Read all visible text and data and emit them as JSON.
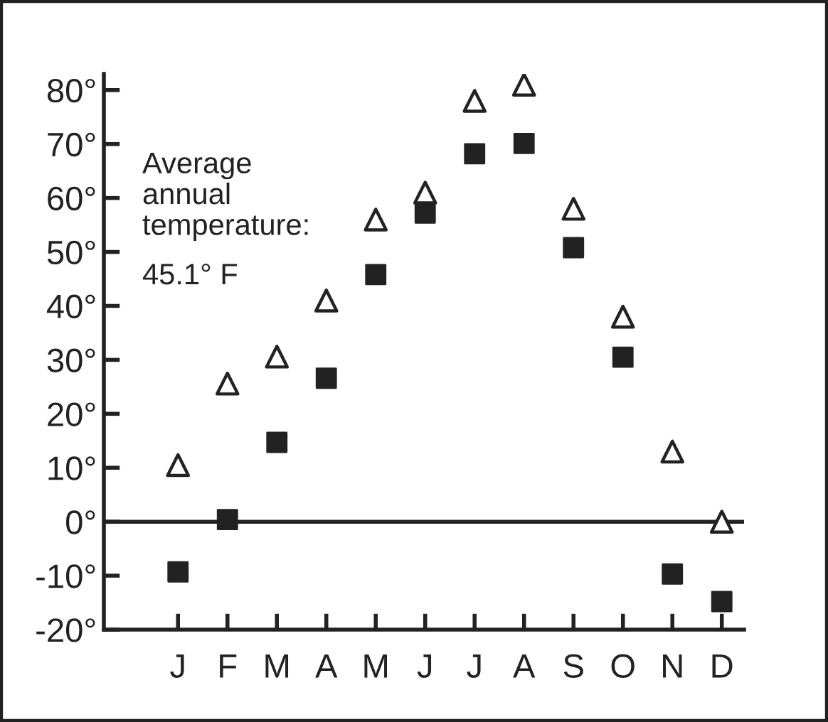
{
  "chart_data": {
    "type": "scatter",
    "categories": [
      "J",
      "F",
      "M",
      "A",
      "M",
      "J",
      "J",
      "A",
      "S",
      "O",
      "N",
      "D"
    ],
    "series": [
      {
        "color": "#222222",
        "marker": "triangle",
        "values": [
          10.5,
          25.6,
          30.6,
          41,
          56,
          61,
          78,
          81,
          58,
          38,
          13,
          0
        ]
      },
      {
        "color": "#222222",
        "marker": "square",
        "values": [
          -9.3,
          0.4,
          14.7,
          26.6,
          45.8,
          57.2,
          68.2,
          70.1,
          50.8,
          30.5,
          -9.7,
          -14.8
        ]
      }
    ],
    "ylim": [
      -20,
      83
    ],
    "yticks": [
      {
        "value": -20,
        "label": "-20°"
      },
      {
        "value": -10,
        "label": "-10°"
      },
      {
        "value": 0,
        "label": "0°"
      },
      {
        "value": 10,
        "label": "10°"
      },
      {
        "value": 20,
        "label": "20°"
      },
      {
        "value": 30,
        "label": "30°"
      },
      {
        "value": 40,
        "label": "40°"
      },
      {
        "value": 50,
        "label": "50°"
      },
      {
        "value": 60,
        "label": "60°"
      },
      {
        "value": 70,
        "label": "70°"
      },
      {
        "value": 80,
        "label": "80°"
      }
    ],
    "ref_lines": [
      {
        "axis": "y",
        "value": 0,
        "color": "#222222"
      }
    ],
    "annotations": [
      "Average\nannual\ntemperature:",
      "45.1° F"
    ],
    "grid": false,
    "legend": false
  }
}
